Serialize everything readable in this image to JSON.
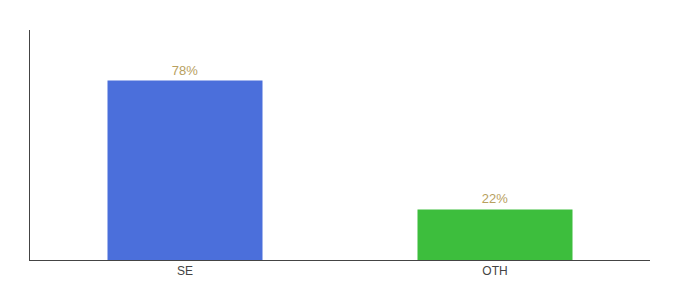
{
  "chart_data": {
    "type": "bar",
    "categories": [
      "SE",
      "OTH"
    ],
    "values": [
      78,
      22
    ],
    "value_labels": [
      "78%",
      "22%"
    ],
    "colors": [
      "#4b6fdb",
      "#3dbe3d"
    ],
    "ylim": [
      0,
      100
    ],
    "data_labels": true,
    "tick_labels": "x",
    "grid": false
  }
}
